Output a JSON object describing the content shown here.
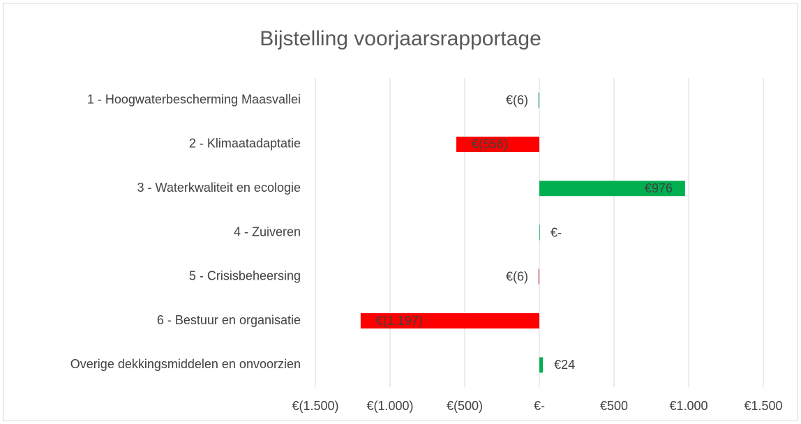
{
  "chart_data": {
    "type": "hbar",
    "title": "Bijstelling voorjaarsrapportage",
    "categories": [
      "1 - Hoogwaterbescherming Maasvallei",
      "2 - Klimaatadaptatie",
      "3 - Waterkwaliteit en ecologie",
      "4 - Zuiveren",
      "5 - Crisisbeheersing",
      "6 - Bestuur en organisatie",
      "Overige dekkingsmiddelen en onvoorzien"
    ],
    "values": [
      -6,
      -556,
      976,
      0,
      -6,
      -1197,
      24
    ],
    "value_labels": [
      "€(6)",
      "€(556)",
      "€976",
      "€-",
      "€(6)",
      "€(1.197)",
      "€24"
    ],
    "colors": [
      "#2e9e8e",
      "#ff0000",
      "#00b050",
      "#00b050",
      "#c0504d",
      "#ff0000",
      "#00b050"
    ],
    "xlim": [
      -1500,
      1500
    ],
    "xticks": [
      {
        "value": -1500,
        "label": "€(1.500)"
      },
      {
        "value": -1000,
        "label": "€(1.000)"
      },
      {
        "value": -500,
        "label": "€(500)"
      },
      {
        "value": 0,
        "label": "€-"
      },
      {
        "value": 500,
        "label": "€500"
      },
      {
        "value": 1000,
        "label": "€1.000"
      },
      {
        "value": 1500,
        "label": "€1.500"
      }
    ],
    "grid": true
  }
}
